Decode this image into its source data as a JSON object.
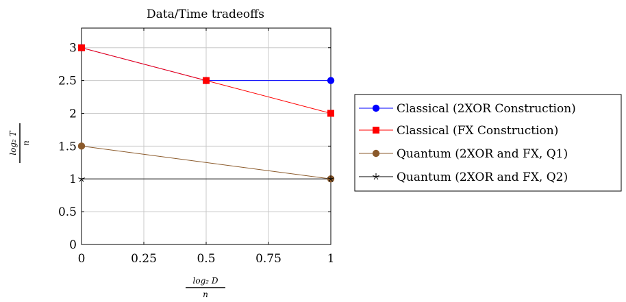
{
  "chart_data": {
    "type": "line",
    "title": "Data/Time tradeoffs",
    "xlabel": {
      "numerator": "log₂ D",
      "denominator": "n"
    },
    "ylabel": {
      "numerator": "log₂ T",
      "denominator": "n"
    },
    "xlim": [
      0,
      1
    ],
    "ylim": [
      0,
      3.3
    ],
    "xticks": [
      0,
      0.25,
      0.5,
      0.75,
      1
    ],
    "xtick_labels": [
      "0",
      "0.25",
      "0.5",
      "0.75",
      "1"
    ],
    "yticks": [
      0,
      0.5,
      1,
      1.5,
      2,
      2.5,
      3
    ],
    "ytick_labels": [
      "0",
      "0.5",
      "1",
      "1.5",
      "2",
      "2.5",
      "3"
    ],
    "grid": true,
    "legend_position": "right",
    "series": [
      {
        "name": "Classical (2XOR Construction)",
        "color": "#0000ff",
        "marker": "circle",
        "x": [
          0,
          0.5,
          1
        ],
        "y": [
          3,
          2.5,
          2.5
        ]
      },
      {
        "name": "Classical (FX Construction)",
        "color": "#ff0000",
        "marker": "square",
        "x": [
          0,
          0.5,
          1
        ],
        "y": [
          3,
          2.5,
          2
        ]
      },
      {
        "name": "Quantum (2XOR and FX, Q1)",
        "color": "#8b5a2b",
        "marker": "circle",
        "x": [
          0,
          1
        ],
        "y": [
          1.5,
          1
        ]
      },
      {
        "name": "Quantum (2XOR and FX, Q2)",
        "color": "#000000",
        "marker": "star",
        "x": [
          0,
          1
        ],
        "y": [
          1,
          1
        ]
      }
    ]
  }
}
